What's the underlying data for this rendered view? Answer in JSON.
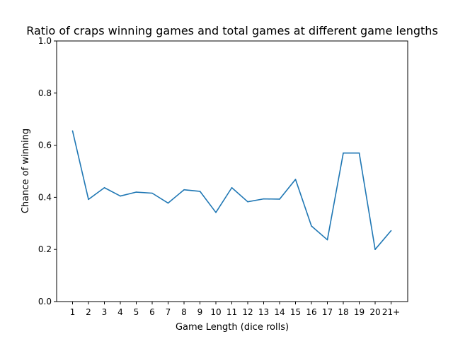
{
  "chart_data": {
    "type": "line",
    "title": "Ratio of craps winning games and total games at different game lengths",
    "xlabel": "Game Length (dice rolls)",
    "ylabel": "Chance of winning",
    "categories": [
      "1",
      "2",
      "3",
      "4",
      "5",
      "6",
      "7",
      "8",
      "9",
      "10",
      "11",
      "12",
      "13",
      "14",
      "15",
      "16",
      "17",
      "18",
      "19",
      "20",
      "21+"
    ],
    "series": [
      {
        "values": [
          0.655,
          0.392,
          0.437,
          0.405,
          0.42,
          0.416,
          0.378,
          0.429,
          0.423,
          0.342,
          0.437,
          0.383,
          0.394,
          0.393,
          0.469,
          0.29,
          0.237,
          0.57,
          0.57,
          0.2,
          0.272
        ],
        "color": "#1f77b4"
      }
    ],
    "ylim": [
      0,
      1.0
    ],
    "yticks": [
      "0.0",
      "0.2",
      "0.4",
      "0.6",
      "0.8",
      "1.0"
    ],
    "grid": false,
    "legend": false
  }
}
